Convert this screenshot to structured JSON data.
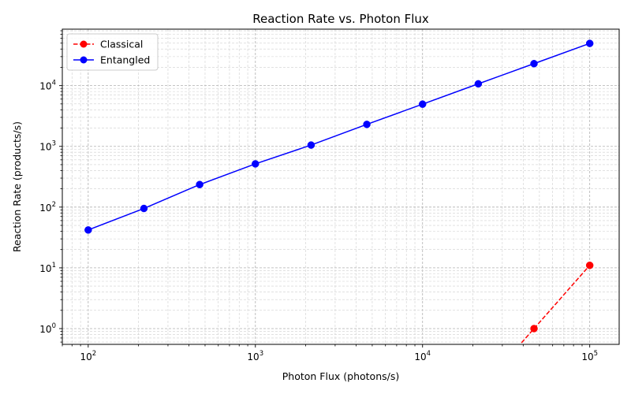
{
  "chart_data": {
    "type": "line",
    "title": "Reaction Rate vs. Photon Flux",
    "xlabel": "Photon Flux (photons/s)",
    "ylabel": "Reaction Rate (products/s)",
    "xscale": "log",
    "yscale": "log",
    "xlim": [
      70,
      150000
    ],
    "ylim": [
      0.55,
      85000
    ],
    "grid": true,
    "legend_position": "top-left",
    "x_ticks": [
      {
        "value": 100,
        "base": "10",
        "exp": "2"
      },
      {
        "value": 1000,
        "base": "10",
        "exp": "3"
      },
      {
        "value": 10000,
        "base": "10",
        "exp": "4"
      },
      {
        "value": 100000,
        "base": "10",
        "exp": "5"
      }
    ],
    "y_ticks": [
      {
        "value": 1,
        "base": "10",
        "exp": "0"
      },
      {
        "value": 10,
        "base": "10",
        "exp": "1"
      },
      {
        "value": 100,
        "base": "10",
        "exp": "2"
      },
      {
        "value": 1000,
        "base": "10",
        "exp": "3"
      },
      {
        "value": 10000,
        "base": "10",
        "exp": "4"
      }
    ],
    "series": [
      {
        "name": "Classical",
        "color": "#ff0000",
        "linestyle": "dashed",
        "marker": "circle",
        "x": [
          46416,
          100000
        ],
        "y": [
          1.0,
          11.0
        ],
        "continues_below_axis": true
      },
      {
        "name": "Entangled",
        "color": "#0000ff",
        "linestyle": "solid",
        "marker": "circle",
        "x": [
          100,
          215.4,
          464.2,
          1000,
          2154.4,
          4641.6,
          10000,
          21544,
          46416,
          100000
        ],
        "y": [
          42,
          95,
          235,
          515,
          1050,
          2300,
          4950,
          10700,
          23000,
          49500
        ]
      }
    ]
  }
}
